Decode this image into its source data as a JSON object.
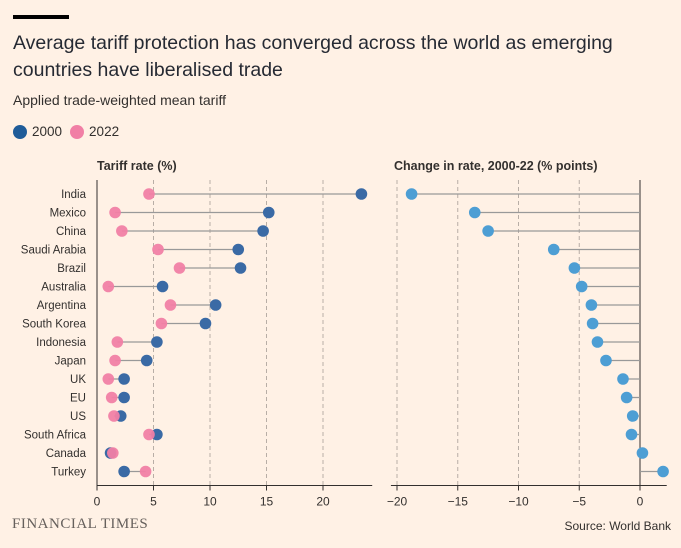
{
  "header": {
    "title": "Average tariff protection has converged across the world as emerging countries have liberalised trade",
    "subtitle": "Applied trade-weighted mean tariff"
  },
  "legend": {
    "items": [
      {
        "label": "2000",
        "color": "#1f5c99"
      },
      {
        "label": "2022",
        "color": "#f17fa5"
      }
    ]
  },
  "footer": {
    "brand": "FINANCIAL TIMES",
    "source": "Source: World Bank"
  },
  "colors": {
    "y2000": "#3a6aa5",
    "y2022": "#f17fa5",
    "change": "#4d9ed4",
    "stem": "#999999",
    "grid": "#b8aea6"
  },
  "chart_data": [
    {
      "type": "dot-plot",
      "title": "Tariff rate (%)",
      "categories": [
        "India",
        "Mexico",
        "China",
        "Saudi Arabia",
        "Brazil",
        "Australia",
        "Argentina",
        "South Korea",
        "Indonesia",
        "Japan",
        "UK",
        "EU",
        "US",
        "South Africa",
        "Canada",
        "Turkey"
      ],
      "series": [
        {
          "name": "2000",
          "values": [
            23.4,
            15.2,
            14.7,
            12.5,
            12.7,
            5.8,
            10.5,
            9.6,
            5.3,
            4.4,
            2.4,
            2.4,
            2.1,
            5.3,
            1.2,
            2.4
          ]
        },
        {
          "name": "2022",
          "values": [
            4.6,
            1.6,
            2.2,
            5.4,
            7.3,
            1.0,
            6.5,
            5.7,
            1.8,
            1.6,
            1.0,
            1.3,
            1.5,
            4.6,
            1.4,
            4.3
          ]
        }
      ],
      "xlim": [
        0,
        24
      ],
      "xticks": [
        0,
        5,
        10,
        15,
        20
      ],
      "grid": true
    },
    {
      "type": "dot-plot",
      "title": "Change in rate, 2000-22 (% points)",
      "categories": [
        "India",
        "Mexico",
        "China",
        "Saudi Arabia",
        "Brazil",
        "Australia",
        "Argentina",
        "South Korea",
        "Indonesia",
        "Japan",
        "UK",
        "EU",
        "US",
        "South Africa",
        "Canada",
        "Turkey"
      ],
      "series": [
        {
          "name": "Change",
          "values": [
            -18.8,
            -13.6,
            -12.5,
            -7.1,
            -5.4,
            -4.8,
            -4.0,
            -3.9,
            -3.5,
            -2.8,
            -1.4,
            -1.1,
            -0.6,
            -0.7,
            0.2,
            1.9
          ]
        }
      ],
      "xlim": [
        -20.5,
        2.2
      ],
      "xticks": [
        -20,
        -15,
        -10,
        -5,
        0
      ],
      "grid": true
    }
  ]
}
